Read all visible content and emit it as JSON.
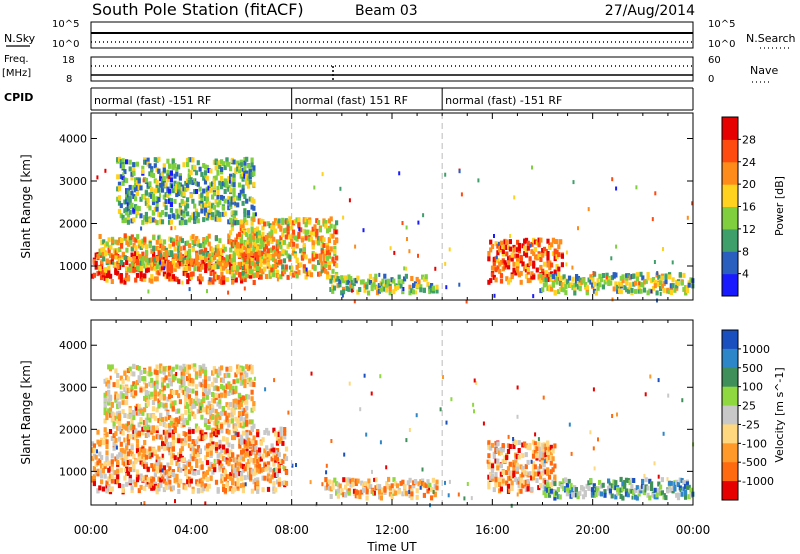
{
  "header": {
    "station": "South Pole Station (fitACF)",
    "beam": "Beam 03",
    "date": "27/Aug/2014"
  },
  "meta_panels": {
    "nsky_label": "N.Sky",
    "nsky_ticks": [
      "10^5",
      "10^0"
    ],
    "nsearch_label": "N.Search",
    "nsearch_ticks": [
      "10^5",
      "10^0"
    ],
    "freq_label": "Freq.",
    "freq_unit": "[MHz]",
    "freq_ticks": [
      "18",
      "8"
    ],
    "nave_label": "Nave",
    "nave_ticks": [
      "60",
      "0"
    ],
    "cpid_label": "CPID",
    "cpid_segments": [
      {
        "label": "normal (fast) -151 RF",
        "start_hour": 0,
        "end_hour": 8
      },
      {
        "label": "normal (fast) 151 RF",
        "start_hour": 8,
        "end_hour": 14
      },
      {
        "label": "normal (fast) -151 RF",
        "start_hour": 14,
        "end_hour": 24
      }
    ]
  },
  "axes": {
    "xlabel": "Time UT",
    "ylabel": "Slant Range [km]",
    "x_ticks": [
      "00:00",
      "04:00",
      "08:00",
      "12:00",
      "16:00",
      "20:00",
      "00:00"
    ]
  },
  "colors": {
    "power": [
      "#1a1aff",
      "#2a5fc0",
      "#3f9f6a",
      "#7fcf3f",
      "#ffd21f",
      "#ff8c1a",
      "#ff4a10",
      "#e60000"
    ],
    "velocity": [
      "#1a4fc0",
      "#2d86c8",
      "#3f8f5a",
      "#8fd83f",
      "#c8c8c8",
      "#ffd77f",
      "#ff9a2a",
      "#ff6a10",
      "#e60000"
    ]
  },
  "chart_data": [
    {
      "type": "heatmap",
      "name": "power",
      "ylabel": "Slant Range [km]",
      "xlabel": "",
      "xlim": [
        0,
        24
      ],
      "ylim": [
        200,
        4600
      ],
      "y_ticks": [
        1000,
        2000,
        3000,
        4000
      ],
      "colorbar_label": "Power [dB]",
      "colorbar_ticks": [
        "4",
        "8",
        "12",
        "16",
        "20",
        "24",
        "28"
      ],
      "colorbar_range": [
        0,
        32
      ],
      "blobs": [
        {
          "t0": 0.0,
          "t1": 6.8,
          "r0": 600,
          "r1": 1300,
          "level": 0.85
        },
        {
          "t0": 0.3,
          "t1": 7.5,
          "r0": 900,
          "r1": 1700,
          "level": 0.55
        },
        {
          "t0": 5.5,
          "t1": 9.8,
          "r0": 700,
          "r1": 2100,
          "level": 0.6
        },
        {
          "t0": 1.0,
          "t1": 6.5,
          "r0": 2000,
          "r1": 3500,
          "level": 0.35
        },
        {
          "t0": 9.5,
          "t1": 13.8,
          "r0": 350,
          "r1": 750,
          "level": 0.45
        },
        {
          "t0": 15.8,
          "t1": 18.8,
          "r0": 600,
          "r1": 1600,
          "level": 0.8
        },
        {
          "t0": 17.8,
          "t1": 24.0,
          "r0": 350,
          "r1": 800,
          "level": 0.45
        }
      ]
    },
    {
      "type": "heatmap",
      "name": "velocity",
      "ylabel": "Slant Range [km]",
      "xlabel": "Time UT",
      "xlim": [
        0,
        24
      ],
      "ylim": [
        200,
        4600
      ],
      "y_ticks": [
        1000,
        2000,
        3000,
        4000
      ],
      "colorbar_label": "Velocity [m s^-1]",
      "colorbar_ticks": [
        "1000",
        "500",
        "100",
        "25",
        "-25",
        "-100",
        "-500",
        "-1000"
      ],
      "blobs": [
        {
          "t0": 0.0,
          "t1": 7.8,
          "r0": 500,
          "r1": 2000,
          "level": 0.7
        },
        {
          "t0": 0.5,
          "t1": 6.5,
          "r0": 2000,
          "r1": 3500,
          "level": 0.6
        },
        {
          "t0": 9.3,
          "t1": 13.8,
          "r0": 350,
          "r1": 800,
          "level": 0.65
        },
        {
          "t0": 15.8,
          "t1": 18.5,
          "r0": 500,
          "r1": 1700,
          "level": 0.7
        },
        {
          "t0": 18.0,
          "t1": 24.0,
          "r0": 350,
          "r1": 800,
          "level": 0.3
        }
      ]
    }
  ]
}
